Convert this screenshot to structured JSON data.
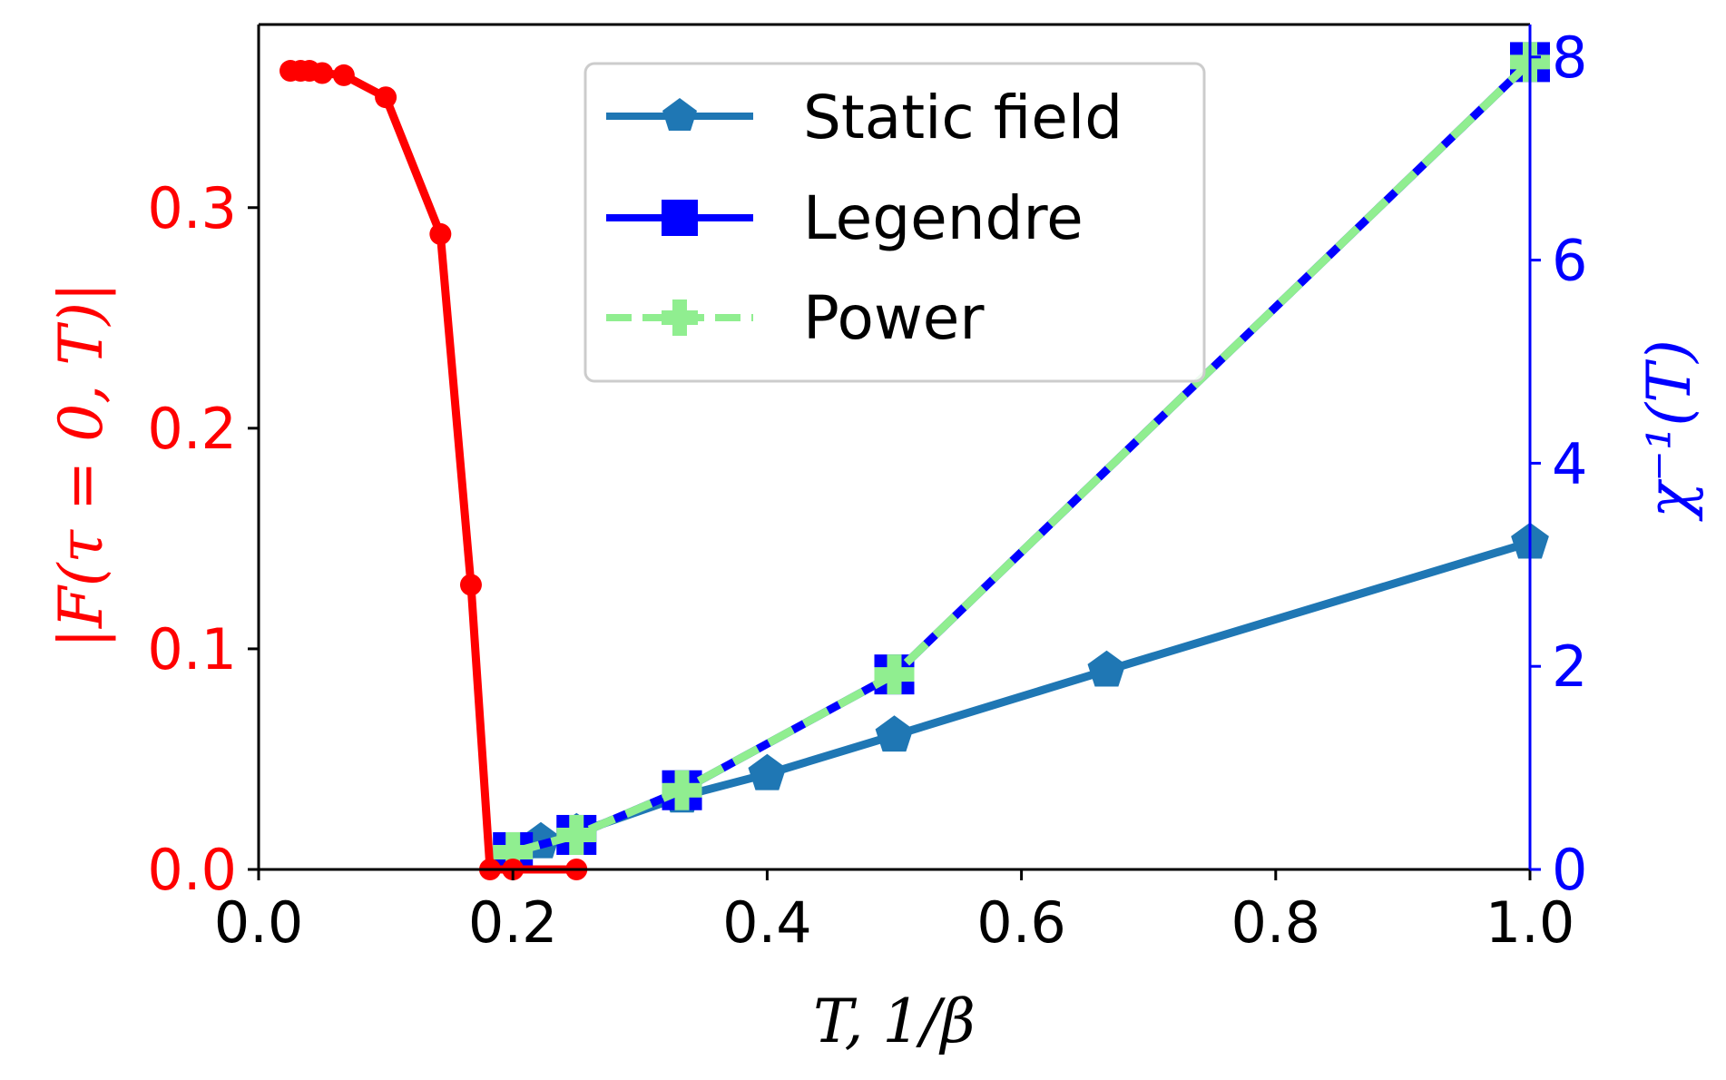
{
  "chart_data": {
    "type": "line",
    "xlabel": "T,  1/β",
    "ylabel_left": "|F(τ = 0, T)|",
    "ylabel_right": "χ⁻¹(T)",
    "xlim": [
      0.0,
      1.0
    ],
    "ylim_left": [
      0.0,
      0.383
    ],
    "ylim_right": [
      0.0,
      8.32
    ],
    "x_ticks": [
      {
        "value": 0.0,
        "label": "0.0"
      },
      {
        "value": 0.2,
        "label": "0.2"
      },
      {
        "value": 0.4,
        "label": "0.4"
      },
      {
        "value": 0.6,
        "label": "0.6"
      },
      {
        "value": 0.8,
        "label": "0.8"
      },
      {
        "value": 1.0,
        "label": "1.0"
      }
    ],
    "y_left_ticks": [
      {
        "value": 0.0,
        "label": "0.0"
      },
      {
        "value": 0.1,
        "label": "0.1"
      },
      {
        "value": 0.2,
        "label": "0.2"
      },
      {
        "value": 0.3,
        "label": "0.3"
      }
    ],
    "y_right_ticks": [
      {
        "value": 0,
        "label": "0"
      },
      {
        "value": 2,
        "label": "2"
      },
      {
        "value": 4,
        "label": "4"
      },
      {
        "value": 6,
        "label": "6"
      },
      {
        "value": 8,
        "label": "8"
      }
    ],
    "colors": {
      "left_axis": "#ff0000",
      "right_axis": "#0000ff",
      "static_field": "#1f77b4",
      "legendre": "#0000ff",
      "power": "#90ee90"
    },
    "series": [
      {
        "name": "|F|",
        "axis": "left",
        "style": "solid",
        "marker": "circle",
        "color": "#ff0000",
        "x": [
          0.025,
          0.033,
          0.04,
          0.05,
          0.067,
          0.1,
          0.143,
          0.167,
          0.182,
          0.2,
          0.25
        ],
        "y": [
          0.362,
          0.362,
          0.362,
          0.361,
          0.36,
          0.35,
          0.288,
          0.129,
          0.0,
          0.0,
          0.0
        ]
      },
      {
        "name": "Static field",
        "axis": "right",
        "style": "solid",
        "marker": "pentagon",
        "color": "#1f77b4",
        "x": [
          0.2,
          0.222,
          0.25,
          0.333,
          0.4,
          0.5,
          0.667,
          1.0
        ],
        "y": [
          0.15,
          0.27,
          0.36,
          0.72,
          0.94,
          1.32,
          1.96,
          3.22
        ]
      },
      {
        "name": "Legendre",
        "axis": "right",
        "style": "solid",
        "marker": "square",
        "color": "#0000ff",
        "x": [
          0.2,
          0.25,
          0.333,
          0.5,
          1.0
        ],
        "y": [
          0.17,
          0.34,
          0.78,
          1.92,
          7.95
        ]
      },
      {
        "name": "Power",
        "axis": "right",
        "style": "dashed",
        "marker": "plus",
        "color": "#90ee90",
        "x": [
          0.2,
          0.25,
          0.333,
          0.5,
          1.0
        ],
        "y": [
          0.17,
          0.34,
          0.78,
          1.92,
          7.95
        ]
      }
    ],
    "legend": {
      "position": "upper-center",
      "entries": [
        "Static field",
        "Legendre",
        "Power"
      ]
    }
  }
}
